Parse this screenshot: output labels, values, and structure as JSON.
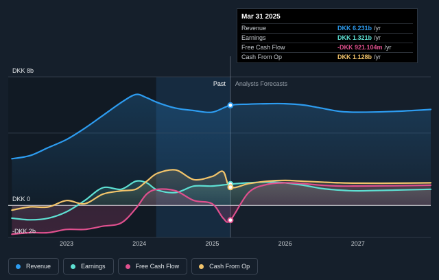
{
  "chart_data": {
    "type": "line",
    "currency": "DKK",
    "y_unit": "billions",
    "ylim": [
      -2,
      8
    ],
    "y_ticks": [
      {
        "value": 8,
        "label": "DKK 8b"
      },
      {
        "value": 0,
        "label": "DKK 0"
      },
      {
        "value": -2,
        "label": "-DKK 2b"
      }
    ],
    "xlim": [
      2022.2,
      2028.0
    ],
    "x_ticks": [
      {
        "value": 2023,
        "label": "2023"
      },
      {
        "value": 2024,
        "label": "2024"
      },
      {
        "value": 2025,
        "label": "2025"
      },
      {
        "value": 2026,
        "label": "2026"
      },
      {
        "value": 2027,
        "label": "2027"
      }
    ],
    "highlight_band": [
      2024.23,
      2025.25
    ],
    "divider_x": 2025.25,
    "past_label": "Past",
    "forecast_label": "Analysts Forecasts",
    "series": [
      {
        "key": "revenue",
        "name": "Revenue",
        "color": "#2d9cf0",
        "fill": true,
        "x": [
          2022.25,
          2022.5,
          2022.75,
          2023.0,
          2023.25,
          2023.5,
          2023.75,
          2023.95,
          2024.1,
          2024.25,
          2024.5,
          2024.75,
          2025.0,
          2025.25,
          2025.5,
          2025.75,
          2026.0,
          2026.25,
          2026.5,
          2026.75,
          2027.0,
          2027.5,
          2028.0
        ],
        "values": [
          2.9,
          3.1,
          3.6,
          4.1,
          4.8,
          5.6,
          6.4,
          6.9,
          6.7,
          6.4,
          6.05,
          5.9,
          5.8,
          6.231,
          6.3,
          6.33,
          6.33,
          6.25,
          6.05,
          5.85,
          5.8,
          5.85,
          5.97
        ]
      },
      {
        "key": "earnings",
        "name": "Earnings",
        "color": "#5ee0d3",
        "fill": true,
        "x": [
          2022.25,
          2022.5,
          2022.75,
          2023.0,
          2023.25,
          2023.5,
          2023.75,
          2023.95,
          2024.1,
          2024.25,
          2024.5,
          2024.75,
          2025.0,
          2025.25,
          2025.5,
          2025.75,
          2026.0,
          2026.25,
          2026.5,
          2026.75,
          2027.0,
          2027.5,
          2028.0
        ],
        "values": [
          -0.8,
          -0.9,
          -0.8,
          -0.4,
          0.3,
          1.1,
          1.0,
          1.5,
          1.4,
          0.95,
          0.8,
          1.2,
          1.2,
          1.321,
          1.4,
          1.45,
          1.4,
          1.25,
          1.05,
          0.95,
          0.9,
          0.95,
          1.0
        ]
      },
      {
        "key": "fcf",
        "name": "Free Cash Flow",
        "color": "#e0508e",
        "fill": true,
        "x": [
          2022.25,
          2022.5,
          2022.75,
          2023.0,
          2023.25,
          2023.5,
          2023.75,
          2023.95,
          2024.1,
          2024.25,
          2024.5,
          2024.75,
          2025.0,
          2025.15,
          2025.25,
          2025.5,
          2025.75,
          2026.0,
          2026.25,
          2026.5,
          2026.75,
          2027.0,
          2027.5,
          2028.0
        ],
        "values": [
          -1.8,
          -1.7,
          -1.7,
          -1.5,
          -1.5,
          -1.3,
          -1.1,
          -0.2,
          0.7,
          1.0,
          0.9,
          0.3,
          0.1,
          -0.8,
          -0.921,
          0.8,
          1.3,
          1.4,
          1.35,
          1.25,
          1.2,
          1.2,
          1.22,
          1.25
        ]
      },
      {
        "key": "cfo",
        "name": "Cash From Op",
        "color": "#f2c46b",
        "fill": true,
        "x": [
          2022.25,
          2022.5,
          2022.75,
          2023.0,
          2023.25,
          2023.5,
          2023.75,
          2023.95,
          2024.1,
          2024.25,
          2024.5,
          2024.75,
          2025.0,
          2025.15,
          2025.25,
          2025.5,
          2025.75,
          2026.0,
          2026.25,
          2026.5,
          2026.75,
          2027.0,
          2027.5,
          2028.0
        ],
        "values": [
          -0.3,
          -0.1,
          -0.1,
          0.3,
          0.1,
          0.7,
          0.9,
          1.0,
          1.5,
          2.0,
          2.2,
          1.6,
          1.8,
          2.1,
          1.128,
          1.35,
          1.5,
          1.55,
          1.5,
          1.45,
          1.4,
          1.38,
          1.38,
          1.4
        ]
      }
    ],
    "markers": [
      {
        "series": "revenue",
        "x": 2025.25,
        "y": 6.231
      },
      {
        "series": "earnings",
        "x": 2025.25,
        "y": 1.321
      },
      {
        "series": "fcf",
        "x": 2025.25,
        "y": -0.921
      },
      {
        "series": "cfo",
        "x": 2025.25,
        "y": 1.128
      }
    ]
  },
  "tooltip": {
    "date": "Mar 31 2025",
    "rows": [
      {
        "label": "Revenue",
        "value": "DKK 6.231b",
        "unit": "/yr",
        "color": "#2d9cf0"
      },
      {
        "label": "Earnings",
        "value": "DKK 1.321b",
        "unit": "/yr",
        "color": "#5ee0d3"
      },
      {
        "label": "Free Cash Flow",
        "value": "-DKK 921.104m",
        "unit": "/yr",
        "color": "#e0508e"
      },
      {
        "label": "Cash From Op",
        "value": "DKK 1.128b",
        "unit": "/yr",
        "color": "#f2c46b"
      }
    ]
  },
  "legend": [
    {
      "label": "Revenue",
      "color": "#2d9cf0"
    },
    {
      "label": "Earnings",
      "color": "#5ee0d3"
    },
    {
      "label": "Free Cash Flow",
      "color": "#e0508e"
    },
    {
      "label": "Cash From Op",
      "color": "#f2c46b"
    }
  ]
}
